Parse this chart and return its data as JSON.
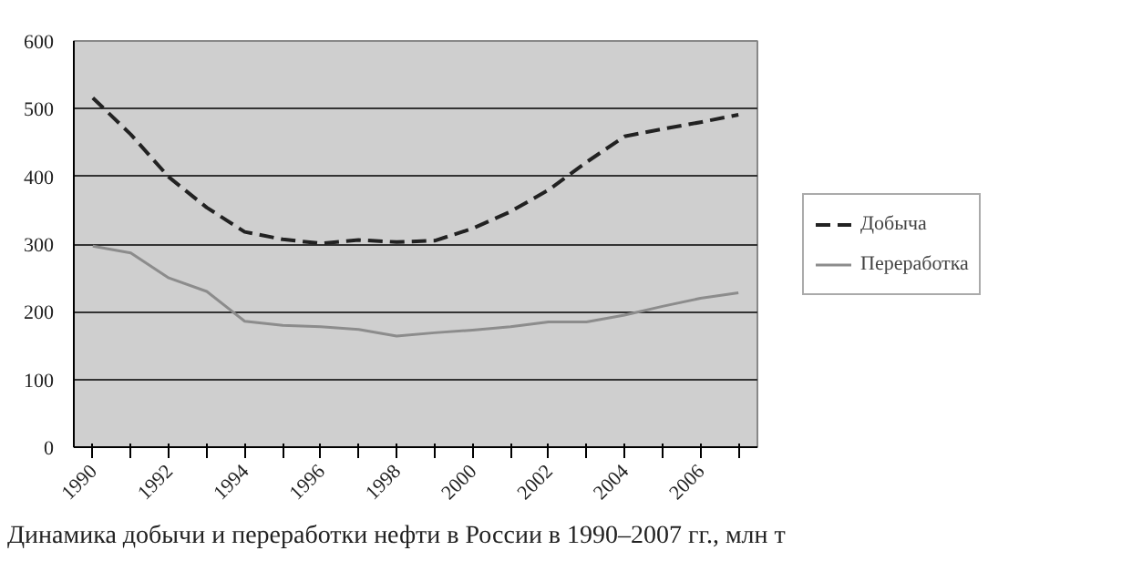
{
  "chart_data": {
    "type": "line",
    "categories": [
      "1990",
      null,
      "1992",
      null,
      "1994",
      null,
      "1996",
      null,
      "1998",
      null,
      "2000",
      null,
      "2002",
      null,
      "2004",
      null,
      "2006",
      null
    ],
    "series": [
      {
        "name": "Добыча",
        "color": "#222222",
        "line_style": "dashed",
        "values": [
          516,
          462,
          399,
          354,
          318,
          307,
          301,
          306,
          303,
          305,
          323,
          348,
          380,
          421,
          459,
          470,
          480,
          491
        ]
      },
      {
        "name": "Переработка",
        "color": "#8c8c8c",
        "line_style": "solid",
        "values": [
          297,
          287,
          250,
          230,
          186,
          180,
          178,
          174,
          164,
          169,
          173,
          178,
          185,
          185,
          195,
          208,
          220,
          228
        ]
      }
    ],
    "ylim": [
      0,
      600
    ],
    "yticks": [
      0,
      100,
      200,
      300,
      400,
      500,
      600
    ],
    "grid": "y",
    "legend": "right",
    "marker": "none",
    "annotations": [
      "Динамика добычи и переработки нефти в России в 1990–2007 гг., млн т"
    ]
  }
}
